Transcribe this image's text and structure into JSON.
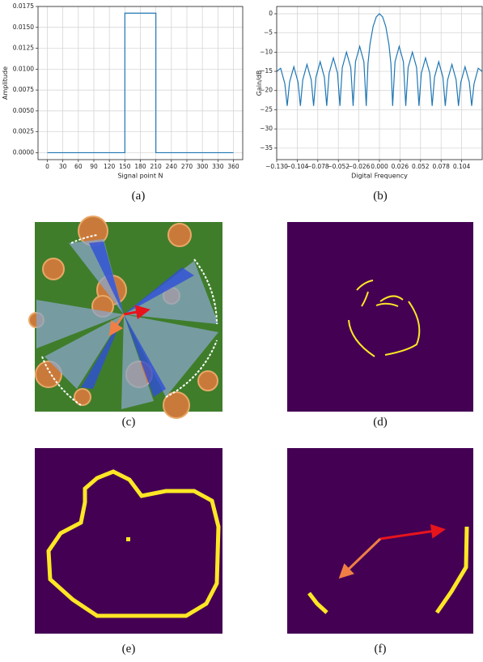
{
  "captions": [
    "(a)",
    "(b)",
    "(c)",
    "(d)",
    "(e)",
    "(f)"
  ],
  "chart_data": [
    {
      "type": "line",
      "xlabel": "Signal point N",
      "ylabel": "Amplitude",
      "color": "#1f77b4",
      "grid": true,
      "x": [
        0,
        150,
        150,
        210,
        210,
        360
      ],
      "values": [
        0,
        0,
        0.0167,
        0.0167,
        0,
        0
      ],
      "xlim": [
        -18,
        378
      ],
      "xticks": [
        0,
        30,
        60,
        90,
        120,
        150,
        180,
        210,
        240,
        270,
        300,
        330,
        360
      ],
      "ylim": [
        -0.00083,
        0.0175
      ],
      "yticks": [
        {
          "value": 0,
          "label": "0.0000"
        },
        {
          "value": 0.0025,
          "label": "0.0025"
        },
        {
          "value": 0.005,
          "label": "0.0050"
        },
        {
          "value": 0.0075,
          "label": "0.0075"
        },
        {
          "value": 0.01,
          "label": "0.0100"
        },
        {
          "value": 0.0125,
          "label": "0.0125"
        },
        {
          "value": 0.015,
          "label": "0.0150"
        },
        {
          "value": 0.0175,
          "label": "0.0175"
        }
      ]
    },
    {
      "type": "line",
      "xlabel": "Digital Frequency",
      "ylabel": "Gain/dB",
      "color": "#1f77b4",
      "grid": true,
      "x": [
        -0.13,
        -0.125,
        -0.1197,
        -0.1167,
        -0.1137,
        -0.1083,
        -0.103,
        -0.1,
        -0.097,
        -0.0917,
        -0.0863,
        -0.0833,
        -0.0803,
        -0.075,
        -0.0697,
        -0.0667,
        -0.0637,
        -0.0583,
        -0.053,
        -0.05,
        -0.047,
        -0.0417,
        -0.0363,
        -0.0333,
        -0.0303,
        -0.025,
        -0.0197,
        -0.0167,
        -0.0145,
        -0.012,
        -0.008,
        -0.004,
        0,
        0.004,
        0.008,
        0.012,
        0.0145,
        0.0167,
        0.0197,
        0.025,
        0.0303,
        0.0333,
        0.0363,
        0.0417,
        0.047,
        0.05,
        0.053,
        0.0583,
        0.0637,
        0.0667,
        0.0697,
        0.075,
        0.0803,
        0.0833,
        0.0863,
        0.0917,
        0.097,
        0.1,
        0.103,
        0.1083,
        0.1137,
        0.1167,
        0.1197,
        0.125,
        0.13
      ],
      "values": [
        -15,
        -14.2,
        -18.2,
        -24,
        -17.8,
        -13.8,
        -17.8,
        -24,
        -17.2,
        -13.2,
        -17.2,
        -24,
        -16.5,
        -12.5,
        -16.5,
        -24,
        -15.5,
        -11.5,
        -15.5,
        -24,
        -14,
        -10,
        -14,
        -24,
        -12.5,
        -8.5,
        -12.5,
        -24,
        -13,
        -8,
        -3.3,
        -0.8,
        0,
        -0.8,
        -3.3,
        -8,
        -13,
        -24,
        -12.5,
        -8.5,
        -12.5,
        -24,
        -14,
        -10,
        -14,
        -24,
        -15.5,
        -11.5,
        -15.5,
        -24,
        -16.5,
        -12.5,
        -16.5,
        -24,
        -17.2,
        -13.2,
        -17.2,
        -24,
        -17.8,
        -13.8,
        -17.8,
        -24,
        -18.2,
        -14.2,
        -15
      ],
      "xlim": [
        -0.13,
        0.13
      ],
      "xticks": [
        {
          "value": -0.13,
          "label": "−0.130"
        },
        {
          "value": -0.104,
          "label": "−0.104"
        },
        {
          "value": -0.078,
          "label": "−0.078"
        },
        {
          "value": -0.052,
          "label": "−0.052"
        },
        {
          "value": -0.026,
          "label": "−0.026"
        },
        {
          "value": 0,
          "label": "0.000"
        },
        0.026,
        0.052,
        0.078,
        0.104
      ],
      "ylim": [
        -38,
        1.9
      ],
      "yticks": [
        0,
        {
          "value": -5,
          "label": "−5"
        },
        {
          "value": -10,
          "label": "−10"
        },
        {
          "value": -15,
          "label": "−15"
        },
        {
          "value": -20,
          "label": "−20"
        },
        {
          "value": -25,
          "label": "−25"
        },
        {
          "value": -30,
          "label": "−30"
        },
        {
          "value": -35,
          "label": "−35"
        }
      ]
    }
  ]
}
